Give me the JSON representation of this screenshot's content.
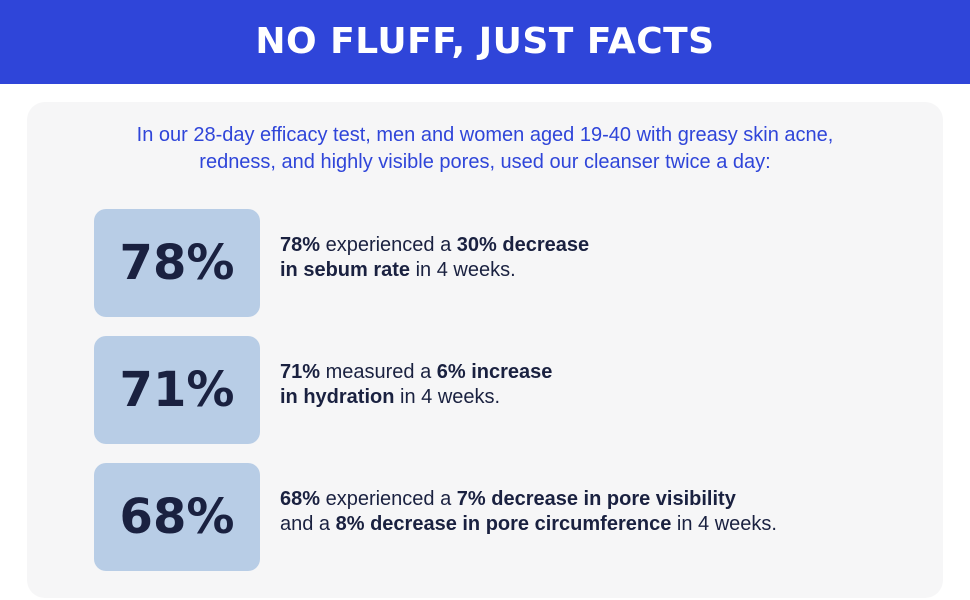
{
  "header": {
    "title": "NO FLUFF, JUST FACTS"
  },
  "intro": {
    "line1": "In our 28-day efficacy test, men and women aged 19-40 with greasy skin acne,",
    "line2": "redness, and highly visible pores, used our cleanser twice a day:"
  },
  "stats": [
    {
      "percent": "78%",
      "lines": [
        [
          {
            "text": "78%",
            "bold": true
          },
          {
            "text": " experienced a ",
            "bold": false
          },
          {
            "text": "30% decrease",
            "bold": true
          }
        ],
        [
          {
            "text": "in sebum rate",
            "bold": true
          },
          {
            "text": " in 4 weeks.",
            "bold": false
          }
        ]
      ]
    },
    {
      "percent": "71%",
      "lines": [
        [
          {
            "text": "71%",
            "bold": true
          },
          {
            "text": " measured a ",
            "bold": false
          },
          {
            "text": "6% increase",
            "bold": true
          }
        ],
        [
          {
            "text": "in hydration",
            "bold": true
          },
          {
            "text": " in 4 weeks.",
            "bold": false
          }
        ]
      ]
    },
    {
      "percent": "68%",
      "lines": [
        [
          {
            "text": "68%",
            "bold": true
          },
          {
            "text": " experienced a ",
            "bold": false
          },
          {
            "text": "7% decrease in pore visibility",
            "bold": true
          }
        ],
        [
          {
            "text": "and a ",
            "bold": false
          },
          {
            "text": "8% decrease in pore circumference",
            "bold": true
          },
          {
            "text": " in 4 weeks.",
            "bold": false
          }
        ]
      ]
    }
  ],
  "colors": {
    "header_bg": "#2f45d9",
    "accent_text": "#2f45d9",
    "panel_bg": "#f6f6f7",
    "stat_box_bg": "#b8cde6",
    "dark_text": "#1a2140"
  }
}
